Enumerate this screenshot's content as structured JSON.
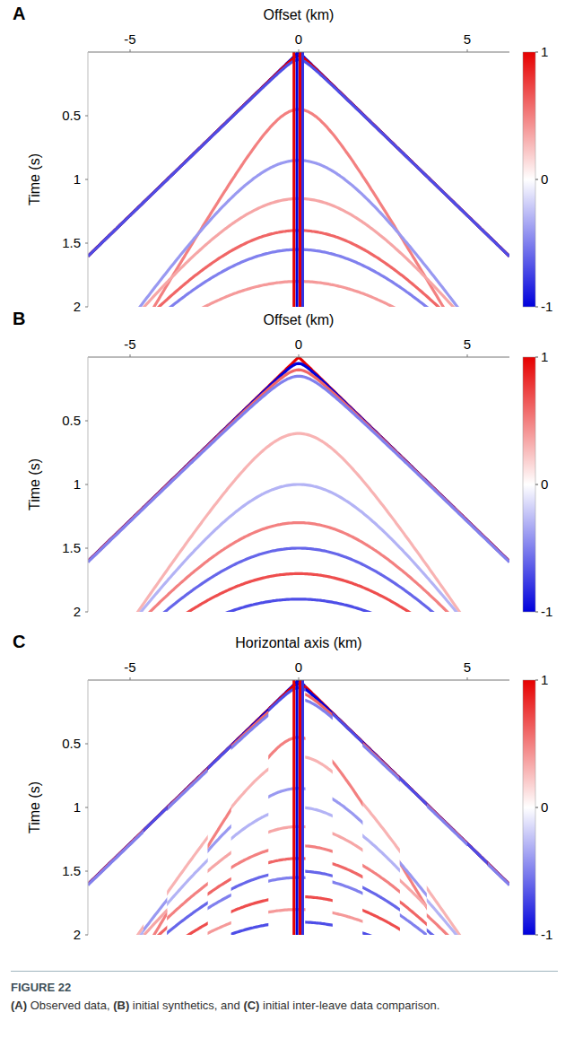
{
  "chart_data": [
    {
      "type": "seismic",
      "panel": "A",
      "x_label": "Offset (km)",
      "y_label": "Time (s)",
      "xlim": [
        -6.25,
        6.25
      ],
      "xticks": [
        -5,
        0,
        5
      ],
      "ylim": [
        0,
        2
      ],
      "yticks": [
        0.5,
        1,
        1.5,
        2
      ],
      "color_range": [
        -1,
        1
      ],
      "color_ticks": [
        -1,
        0,
        1
      ],
      "events": [
        {
          "t0": 0,
          "velocity": 3.9,
          "amplitude": -1
        },
        {
          "t0": 0.03,
          "velocity": 3.9,
          "amplitude": 1
        },
        {
          "t0": 0.06,
          "velocity": 3.9,
          "amplitude": -0.7
        },
        {
          "t0": 0.45,
          "velocity": 2.2,
          "amplitude": 0.5
        },
        {
          "t0": 0.85,
          "velocity": 2.6,
          "amplitude": -0.4
        },
        {
          "t0": 1.15,
          "velocity": 2.8,
          "amplitude": 0.35
        },
        {
          "t0": 1.4,
          "velocity": 2.9,
          "amplitude": 0.6
        },
        {
          "t0": 1.55,
          "velocity": 3.0,
          "amplitude": -0.5
        },
        {
          "t0": 1.8,
          "velocity": 3.2,
          "amplitude": 0.4
        }
      ],
      "traces": [
        {
          "x": -0.14,
          "amplitude": 1
        },
        {
          "x": -0.05,
          "amplitude": -1
        },
        {
          "x": 0.04,
          "amplitude": 1
        },
        {
          "x": 0.12,
          "amplitude": -0.8
        }
      ]
    },
    {
      "type": "seismic",
      "panel": "B",
      "x_label": "Offset (km)",
      "y_label": "Time (s)",
      "xlim": [
        -6.25,
        6.25
      ],
      "xticks": [
        -5,
        0,
        5
      ],
      "ylim": [
        0,
        2
      ],
      "yticks": [
        0.5,
        1,
        1.5,
        2
      ],
      "color_range": [
        -1,
        1
      ],
      "color_ticks": [
        -1,
        0,
        1
      ],
      "events": [
        {
          "t0": 0,
          "velocity": 3.9,
          "amplitude": 1
        },
        {
          "t0": 0.05,
          "velocity": 3.9,
          "amplitude": -1
        },
        {
          "t0": 0.1,
          "velocity": 3.9,
          "amplitude": 0.6
        },
        {
          "t0": 0.15,
          "velocity": 3.9,
          "amplitude": -0.5
        },
        {
          "t0": 0.6,
          "velocity": 2.5,
          "amplitude": 0.3
        },
        {
          "t0": 1.0,
          "velocity": 2.7,
          "amplitude": -0.3
        },
        {
          "t0": 1.3,
          "velocity": 2.9,
          "amplitude": 0.5
        },
        {
          "t0": 1.5,
          "velocity": 3.0,
          "amplitude": -0.6
        },
        {
          "t0": 1.7,
          "velocity": 3.1,
          "amplitude": 0.7
        },
        {
          "t0": 1.9,
          "velocity": 3.3,
          "amplitude": -0.7
        }
      ],
      "traces": []
    },
    {
      "type": "interleave",
      "panel": "C",
      "x_label": "Horizontal axis (km)",
      "y_label": "Time (s)",
      "xlim": [
        -6.25,
        6.25
      ],
      "xticks": [
        -5,
        0,
        5
      ],
      "ylim": [
        0,
        2
      ],
      "yticks": [
        0.5,
        1,
        1.5,
        2
      ],
      "color_range": [
        -1,
        1
      ],
      "color_ticks": [
        -1,
        0,
        1
      ],
      "observed_strips": [
        [
          -4.6,
          -3.9
        ],
        [
          -2.7,
          -2.0
        ],
        [
          -0.9,
          0.2
        ],
        [
          1.0,
          1.9
        ],
        [
          3.0,
          3.8
        ],
        [
          5.0,
          5.6
        ]
      ]
    }
  ],
  "caption": {
    "label": "FIGURE 22",
    "parts": [
      {
        "text": "(A)",
        "bold": true
      },
      {
        "text": " Observed data, ",
        "bold": false
      },
      {
        "text": "(B)",
        "bold": true
      },
      {
        "text": " initial synthetics, and ",
        "bold": false
      },
      {
        "text": "(C)",
        "bold": true
      },
      {
        "text": " initial inter-leave data comparison.",
        "bold": false
      }
    ]
  }
}
